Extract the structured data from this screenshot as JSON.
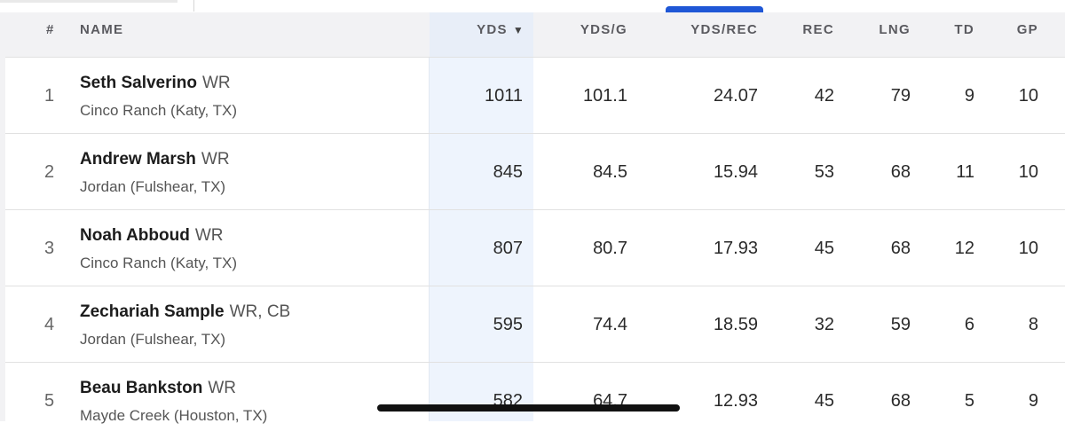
{
  "columns": {
    "rank": "#",
    "name": "NAME",
    "yds": "YDS",
    "yds_sort_icon": "▼",
    "yds_g": "YDS/G",
    "yds_rec": "YDS/REC",
    "rec": "REC",
    "lng": "LNG",
    "td": "TD",
    "gp": "GP"
  },
  "rows": [
    {
      "rank": "1",
      "name": "Seth Salverino",
      "pos": "WR",
      "school": "Cinco Ranch (Katy, TX)",
      "yds": "1011",
      "yds_g": "101.1",
      "yds_rec": "24.07",
      "rec": "42",
      "lng": "79",
      "td": "9",
      "gp": "10"
    },
    {
      "rank": "2",
      "name": "Andrew Marsh",
      "pos": "WR",
      "school": "Jordan (Fulshear, TX)",
      "yds": "845",
      "yds_g": "84.5",
      "yds_rec": "15.94",
      "rec": "53",
      "lng": "68",
      "td": "11",
      "gp": "10"
    },
    {
      "rank": "3",
      "name": "Noah Abboud",
      "pos": "WR",
      "school": "Cinco Ranch (Katy, TX)",
      "yds": "807",
      "yds_g": "80.7",
      "yds_rec": "17.93",
      "rec": "45",
      "lng": "68",
      "td": "12",
      "gp": "10"
    },
    {
      "rank": "4",
      "name": "Zechariah Sample",
      "pos": "WR, CB",
      "school": "Jordan (Fulshear, TX)",
      "yds": "595",
      "yds_g": "74.4",
      "yds_rec": "18.59",
      "rec": "32",
      "lng": "59",
      "td": "6",
      "gp": "8"
    },
    {
      "rank": "5",
      "name": "Beau Bankston",
      "pos": "WR",
      "school": "Mayde Creek (Houston, TX)",
      "yds": "582",
      "yds_g": "64.7",
      "yds_rec": "12.93",
      "rec": "45",
      "lng": "68",
      "td": "5",
      "gp": "9"
    }
  ],
  "colors": {
    "accent": "#1f57d6",
    "sort_column_bg": "#eef4fd",
    "header_bg": "#f2f2f4"
  }
}
